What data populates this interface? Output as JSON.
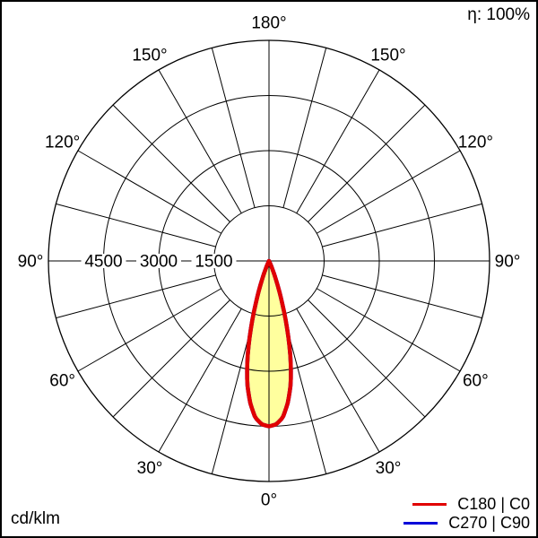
{
  "header": {
    "efficiency": "η: 100%"
  },
  "footer": {
    "unit": "cd/klm"
  },
  "legend": {
    "items": [
      {
        "label": "C180 | C0",
        "color": "#e10000"
      },
      {
        "label": "C270 | C90",
        "color": "#0000d9"
      }
    ]
  },
  "chart_data": {
    "type": "line",
    "subtype": "polar-luminous-intensity-distribution",
    "unit": "cd/klm",
    "efficiency": "η: 100%",
    "angle_axis": {
      "labels": [
        "0°",
        "30°",
        "60°",
        "90°",
        "120°",
        "150°",
        "180°"
      ],
      "label_degrees": [
        0,
        30,
        60,
        90,
        120,
        150,
        180
      ],
      "grid_step_deg": 15,
      "zero_position": "bottom"
    },
    "radial_axis": {
      "tick_values": [
        1500,
        3000,
        4500
      ],
      "tick_labels": [
        "1500",
        "3000",
        "4500"
      ],
      "max": 6000,
      "grid": true
    },
    "fill_color": "#ffff9e",
    "legend_position": "bottom-right",
    "series": [
      {
        "name": "C180 | C0",
        "color": "#e10000",
        "gamma_deg": [
          0,
          2.5,
          5,
          7.5,
          10,
          12.5,
          15,
          17.5,
          20,
          22.5,
          25,
          27.5,
          30,
          45,
          60,
          75,
          90
        ],
        "values": [
          4500,
          4450,
          4280,
          3900,
          3400,
          2700,
          1900,
          1150,
          600,
          250,
          80,
          15,
          0,
          0,
          0,
          0,
          0
        ]
      },
      {
        "name": "C270 | C90",
        "color": "#0000d9",
        "gamma_deg": [
          0,
          2.5,
          5,
          7.5,
          10,
          12.5,
          15,
          17.5,
          20,
          22.5,
          25,
          27.5,
          30,
          45,
          60,
          75,
          90
        ],
        "values": [
          4500,
          4450,
          4280,
          3900,
          3400,
          2700,
          1900,
          1150,
          600,
          250,
          80,
          15,
          0,
          0,
          0,
          0,
          0
        ]
      }
    ]
  }
}
